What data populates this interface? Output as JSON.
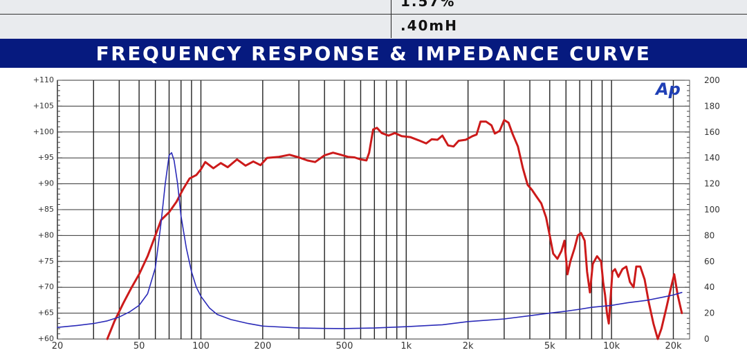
{
  "spec_table": {
    "rows": [
      {
        "value": "1.57%"
      },
      {
        "value": ".40mH"
      }
    ]
  },
  "section_title": "FREQUENCY RESPONSE & IMPEDANCE CURVE",
  "chart_data": {
    "type": "line",
    "title": "",
    "logo_text": "Ap",
    "x_scale": "log",
    "xlim": [
      20,
      24000
    ],
    "x_ticks": [
      20,
      50,
      100,
      200,
      500,
      1000,
      2000,
      5000,
      10000,
      20000
    ],
    "x_tick_labels": [
      "20",
      "50",
      "100",
      "200",
      "500",
      "1k",
      "2k",
      "5k",
      "10k",
      "20k"
    ],
    "x_gridlines": [
      20,
      30,
      40,
      50,
      60,
      70,
      80,
      90,
      100,
      200,
      300,
      400,
      500,
      600,
      700,
      800,
      900,
      1000,
      2000,
      3000,
      4000,
      5000,
      6000,
      7000,
      8000,
      9000,
      10000,
      20000
    ],
    "y_left": {
      "ylim": [
        60,
        110
      ],
      "ticks": [
        60,
        65,
        70,
        75,
        80,
        85,
        90,
        95,
        100,
        105,
        110
      ],
      "tick_labels": [
        "+60",
        "+65",
        "+70",
        "+75",
        "+80",
        "+85",
        "+90",
        "+95",
        "+100",
        "+105",
        "+110"
      ]
    },
    "y_right": {
      "ylim": [
        0,
        200
      ],
      "ticks": [
        0,
        20,
        40,
        60,
        80,
        100,
        120,
        140,
        160,
        180,
        200
      ],
      "tick_labels": [
        "0",
        "20",
        "40",
        "60",
        "80",
        "100",
        "120",
        "140",
        "160",
        "180",
        "200"
      ]
    },
    "grid": true,
    "series": [
      {
        "color": "#cc1a1a",
        "axis": "left",
        "points": [
          [
            35,
            60
          ],
          [
            38,
            63.5
          ],
          [
            42,
            67
          ],
          [
            46,
            70
          ],
          [
            50,
            72.5
          ],
          [
            55,
            76
          ],
          [
            60,
            80
          ],
          [
            64,
            83
          ],
          [
            70,
            84.5
          ],
          [
            76,
            86.5
          ],
          [
            82,
            89
          ],
          [
            88,
            91
          ],
          [
            95,
            91.7
          ],
          [
            100,
            92.8
          ],
          [
            105,
            94.2
          ],
          [
            115,
            93
          ],
          [
            125,
            94
          ],
          [
            135,
            93.2
          ],
          [
            150,
            94.7
          ],
          [
            165,
            93.5
          ],
          [
            180,
            94.3
          ],
          [
            195,
            93.6
          ],
          [
            210,
            95
          ],
          [
            240,
            95.2
          ],
          [
            270,
            95.6
          ],
          [
            300,
            95.1
          ],
          [
            330,
            94.5
          ],
          [
            360,
            94.2
          ],
          [
            400,
            95.5
          ],
          [
            440,
            96
          ],
          [
            480,
            95.6
          ],
          [
            520,
            95.2
          ],
          [
            560,
            95.1
          ],
          [
            600,
            94.7
          ],
          [
            640,
            94.5
          ],
          [
            660,
            96
          ],
          [
            690,
            100.5
          ],
          [
            720,
            100.8
          ],
          [
            760,
            99.8
          ],
          [
            820,
            99.3
          ],
          [
            880,
            99.8
          ],
          [
            950,
            99.2
          ],
          [
            1050,
            99
          ],
          [
            1150,
            98.4
          ],
          [
            1250,
            97.8
          ],
          [
            1330,
            98.6
          ],
          [
            1420,
            98.5
          ],
          [
            1500,
            99.3
          ],
          [
            1600,
            97.4
          ],
          [
            1700,
            97.2
          ],
          [
            1800,
            98.3
          ],
          [
            1950,
            98.5
          ],
          [
            2100,
            99.2
          ],
          [
            2200,
            99.5
          ],
          [
            2300,
            102
          ],
          [
            2450,
            102
          ],
          [
            2600,
            101.3
          ],
          [
            2700,
            99.7
          ],
          [
            2850,
            100.2
          ],
          [
            3000,
            102.3
          ],
          [
            3150,
            101.8
          ],
          [
            3300,
            99.6
          ],
          [
            3500,
            97.2
          ],
          [
            3700,
            93
          ],
          [
            3900,
            89.8
          ],
          [
            4100,
            88.8
          ],
          [
            4300,
            87.6
          ],
          [
            4550,
            86.2
          ],
          [
            4800,
            83.5
          ],
          [
            5000,
            80
          ],
          [
            5200,
            76.5
          ],
          [
            5450,
            75.5
          ],
          [
            5700,
            77
          ],
          [
            5900,
            79
          ],
          [
            6100,
            72.5
          ],
          [
            6300,
            75
          ],
          [
            6600,
            77.5
          ],
          [
            6850,
            80
          ],
          [
            7100,
            80.5
          ],
          [
            7400,
            79
          ],
          [
            7600,
            73
          ],
          [
            7850,
            69
          ],
          [
            8100,
            74.5
          ],
          [
            8500,
            76
          ],
          [
            8900,
            75
          ],
          [
            9100,
            71
          ],
          [
            9300,
            68.5
          ],
          [
            9500,
            65
          ],
          [
            9700,
            63
          ],
          [
            9900,
            68
          ],
          [
            10100,
            73
          ],
          [
            10400,
            73.5
          ],
          [
            10800,
            72
          ],
          [
            11300,
            73.5
          ],
          [
            11800,
            74
          ],
          [
            12300,
            71
          ],
          [
            12800,
            70
          ],
          [
            13200,
            74
          ],
          [
            13800,
            74
          ],
          [
            14500,
            71.5
          ],
          [
            15200,
            67
          ],
          [
            16000,
            63
          ],
          [
            16800,
            60
          ],
          [
            17500,
            62
          ],
          [
            18500,
            66
          ],
          [
            19500,
            70
          ],
          [
            20200,
            72.5
          ],
          [
            21000,
            68.5
          ],
          [
            22000,
            65
          ]
        ]
      },
      {
        "color": "#2a2ab8",
        "axis": "right",
        "points": [
          [
            20,
            9
          ],
          [
            25,
            10.5
          ],
          [
            30,
            12
          ],
          [
            35,
            14
          ],
          [
            40,
            17
          ],
          [
            45,
            21
          ],
          [
            50,
            26
          ],
          [
            55,
            35
          ],
          [
            60,
            55
          ],
          [
            64,
            90
          ],
          [
            67,
            120
          ],
          [
            70,
            142
          ],
          [
            72,
            144
          ],
          [
            74,
            138
          ],
          [
            77,
            120
          ],
          [
            80,
            95
          ],
          [
            85,
            70
          ],
          [
            90,
            52
          ],
          [
            95,
            40
          ],
          [
            100,
            33
          ],
          [
            110,
            24
          ],
          [
            120,
            19
          ],
          [
            140,
            15
          ],
          [
            170,
            12
          ],
          [
            200,
            10
          ],
          [
            300,
            8.5
          ],
          [
            400,
            8.2
          ],
          [
            500,
            8.1
          ],
          [
            700,
            8.5
          ],
          [
            1000,
            9.5
          ],
          [
            1500,
            11
          ],
          [
            2000,
            13.5
          ],
          [
            3000,
            15.5
          ],
          [
            4000,
            18
          ],
          [
            5000,
            20
          ],
          [
            6000,
            21.5
          ],
          [
            7000,
            23
          ],
          [
            8000,
            24.5
          ],
          [
            10000,
            26
          ],
          [
            12000,
            28
          ],
          [
            15000,
            30
          ],
          [
            18000,
            32.5
          ],
          [
            20000,
            34
          ],
          [
            22000,
            36
          ]
        ]
      }
    ]
  }
}
